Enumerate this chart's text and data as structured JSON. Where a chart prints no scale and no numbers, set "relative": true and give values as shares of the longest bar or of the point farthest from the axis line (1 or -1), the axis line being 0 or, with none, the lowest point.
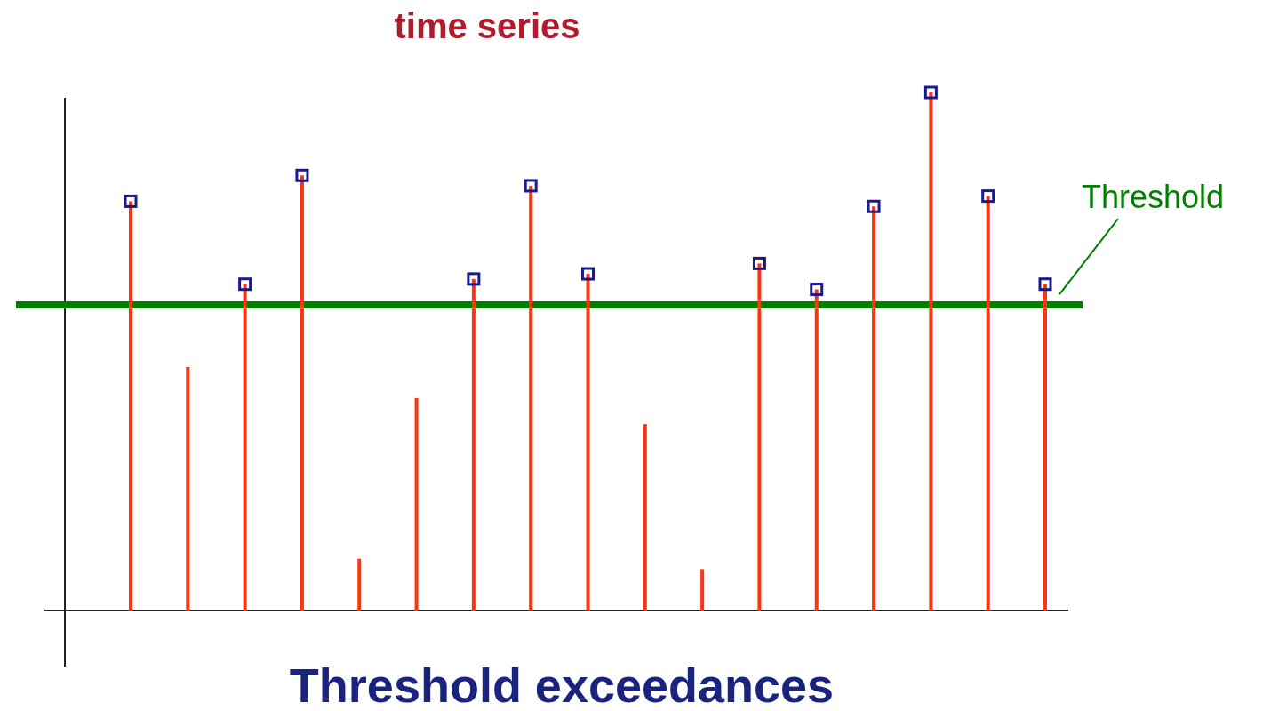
{
  "chart_data": {
    "type": "bar",
    "title": "time series",
    "xlabel": "Threshold exceedances",
    "relative": true,
    "marker": "square",
    "categories": [
      null,
      null,
      null,
      null,
      null,
      null,
      null,
      null,
      null,
      null,
      null,
      null,
      null,
      null,
      null,
      null,
      null
    ],
    "series": [
      {
        "color": "#ff3311",
        "values": [
          0.79,
          0.47,
          0.63,
          0.84,
          0.1,
          0.41,
          0.64,
          0.82,
          0.65,
          0.36,
          0.08,
          0.67,
          0.62,
          0.78,
          1.0,
          0.8,
          0.63
        ]
      }
    ],
    "ref_lines": [
      {
        "axis": "y",
        "value": 0.59,
        "label": "Threshold",
        "color": "#008000"
      }
    ]
  }
}
